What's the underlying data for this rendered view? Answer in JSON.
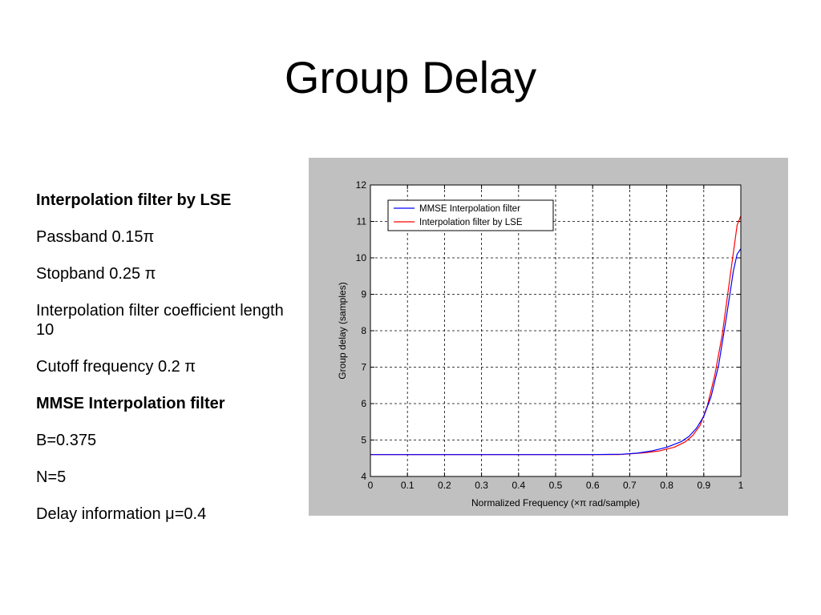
{
  "slide": {
    "title": "Group Delay"
  },
  "notes": [
    {
      "text": "Interpolation filter by LSE",
      "bold": true
    },
    {
      "text": "Passband 0.15π",
      "bold": false
    },
    {
      "text": "Stopband 0.25 π",
      "bold": false
    },
    {
      "text": "Interpolation filter coefficient length 10",
      "bold": false
    },
    {
      "text": "Cutoff frequency 0.2 π",
      "bold": false
    },
    {
      "text": "MMSE Interpolation filter",
      "bold": true
    },
    {
      "text": "B=0.375",
      "bold": false
    },
    {
      "text": "N=5",
      "bold": false
    },
    {
      "text": "Delay information μ=0.4",
      "bold": false
    }
  ],
  "chart_data": {
    "type": "line",
    "xlabel": "Normalized Frequency (×π rad/sample)",
    "ylabel": "Group delay (samples)",
    "xlim": [
      0,
      1
    ],
    "ylim": [
      4,
      12
    ],
    "xticks": [
      "0",
      "0.1",
      "0.2",
      "0.3",
      "0.4",
      "0.5",
      "0.6",
      "0.7",
      "0.8",
      "0.9",
      "1"
    ],
    "yticks": [
      "4",
      "5",
      "6",
      "7",
      "8",
      "9",
      "10",
      "11",
      "12"
    ],
    "grid": true,
    "legend_position": "top-left",
    "series": [
      {
        "name": "MMSE Interpolation filter",
        "color": "#0000ff",
        "x": [
          0,
          0.6,
          0.68,
          0.72,
          0.76,
          0.8,
          0.84,
          0.86,
          0.88,
          0.9,
          0.92,
          0.94,
          0.96,
          0.98,
          0.99,
          1.0
        ],
        "y": [
          4.6,
          4.6,
          4.61,
          4.64,
          4.7,
          4.8,
          4.96,
          5.1,
          5.32,
          5.65,
          6.2,
          7.05,
          8.3,
          9.65,
          10.1,
          10.25
        ]
      },
      {
        "name": "Interpolation filter by LSE",
        "color": "#ff0000",
        "x": [
          0,
          0.67,
          0.7,
          0.74,
          0.78,
          0.82,
          0.85,
          0.87,
          0.89,
          0.91,
          0.93,
          0.95,
          0.97,
          0.99,
          1.0
        ],
        "y": [
          4.6,
          4.6,
          4.62,
          4.65,
          4.7,
          4.8,
          4.95,
          5.12,
          5.4,
          5.95,
          6.8,
          7.9,
          9.4,
          10.9,
          11.15
        ]
      }
    ]
  }
}
